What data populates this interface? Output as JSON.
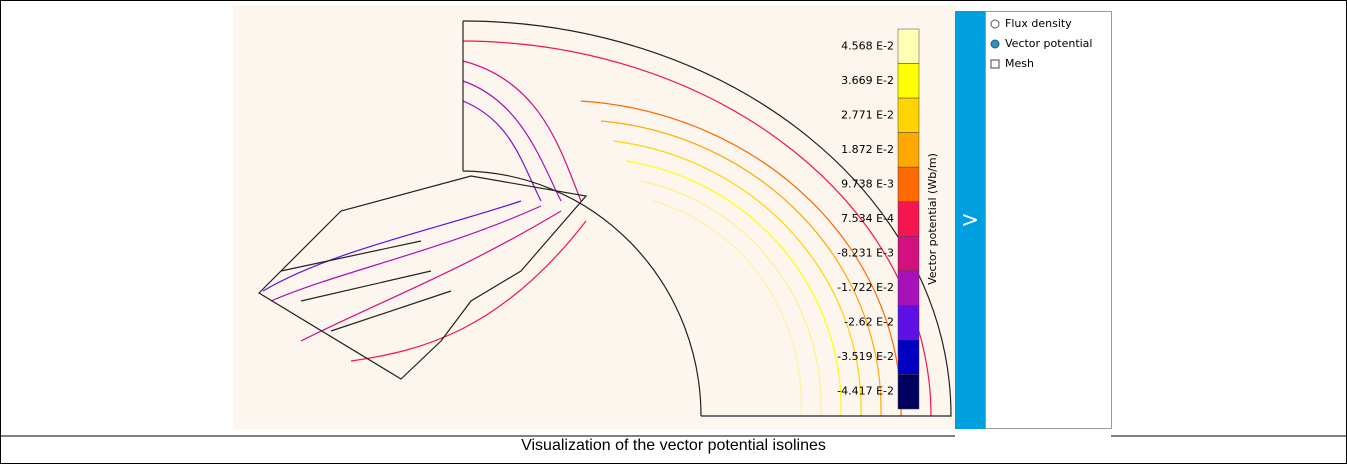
{
  "colorbar": {
    "title": "Vector potential (Wb/m)",
    "entries": [
      {
        "label": "4.568 E-2",
        "color": "#ffffb4"
      },
      {
        "label": "3.669 E-2",
        "color": "#ffff00"
      },
      {
        "label": "2.771 E-2",
        "color": "#ffd400"
      },
      {
        "label": "1.872 E-2",
        "color": "#ffa800"
      },
      {
        "label": "9.738 E-3",
        "color": "#ff6a00"
      },
      {
        "label": "7.534 E-4",
        "color": "#f5154f"
      },
      {
        "label": "-8.231 E-3",
        "color": "#d4107e"
      },
      {
        "label": "-1.722 E-2",
        "color": "#a810b8"
      },
      {
        "label": "-2.62 E-2",
        "color": "#5e10e6"
      },
      {
        "label": "-3.519 E-2",
        "color": "#0000c4"
      },
      {
        "label": "-4.417 E-2",
        "color": "#00005e"
      }
    ]
  },
  "panel": {
    "toggle": ">",
    "options": [
      "Flux density",
      "Vector potential"
    ],
    "selected": 1,
    "checkbox": "Mesh"
  },
  "caption": "Visualization of the vector potential isolines"
}
